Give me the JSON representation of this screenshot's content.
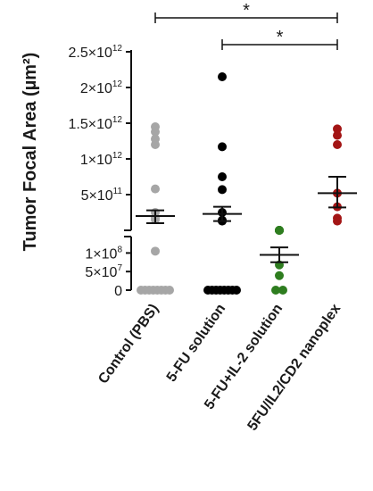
{
  "chart_data": {
    "type": "scatter",
    "title": "",
    "ylabel": "Tumor Focal Area (µm²)",
    "y_axis_break": true,
    "categories": [
      "Control (PBS)",
      "5-FU solution",
      "5-FU+IL-2 solution",
      "5FU/IL2/CD2 nanoplex"
    ],
    "upper_segment": {
      "ylim": [
        0,
        2500000000000.0
      ],
      "ticks": [
        {
          "value": 500000000000.0,
          "mant": "5",
          "exp": "11"
        },
        {
          "value": 1000000000000.0,
          "mant": "1",
          "exp": "12"
        },
        {
          "value": 1500000000000.0,
          "mant": "1.5",
          "exp": "12"
        },
        {
          "value": 2000000000000.0,
          "mant": "2",
          "exp": "12"
        },
        {
          "value": 2500000000000.0,
          "mant": "2.5",
          "exp": "12"
        }
      ]
    },
    "lower_segment": {
      "ylim": [
        0,
        125000000.0
      ],
      "ticks": [
        {
          "value": 0,
          "mant": "0",
          "exp": ""
        },
        {
          "value": 50000000.0,
          "mant": "5",
          "exp": "7"
        },
        {
          "value": 100000000.0,
          "mant": "1",
          "exp": "8"
        }
      ]
    },
    "series": [
      {
        "category": "Control (PBS)",
        "color": "#a6a6a6",
        "points": [
          1450000000000.0,
          1380000000000.0,
          1280000000000.0,
          1200000000000.0,
          580000000000.0,
          250000000000.0,
          180000000000.0,
          150000000000.0,
          105000000.0,
          0,
          0,
          0,
          0,
          0,
          0,
          0,
          0
        ],
        "mean": 200000000000.0,
        "sem": [
          100000000000.0,
          280000000000.0
        ]
      },
      {
        "category": "5-FU solution",
        "color": "#000000",
        "points": [
          2150000000000.0,
          1170000000000.0,
          750000000000.0,
          570000000000.0,
          250000000000.0,
          140000000000.0,
          130000000000.0,
          0,
          0,
          0,
          0,
          0,
          0,
          0,
          0
        ],
        "mean": 230000000000.0,
        "sem": [
          130000000000.0,
          330000000000.0
        ]
      },
      {
        "category": "5-FU+IL-2 solution",
        "color": "#2e7d1f",
        "points": [
          157000000.0,
          157000000.0,
          157000000.0,
          157000000.0,
          68000000.0,
          39000000.0,
          0,
          0
        ],
        "mean": 95000000.0,
        "sem": [
          75000000.0,
          115000000.0
        ]
      },
      {
        "category": "5FU/IL2/CD2 nanoplex",
        "color": "#a31515",
        "points": [
          1420000000000.0,
          1330000000000.0,
          1200000000000.0,
          520000000000.0,
          330000000000.0,
          170000000000.0,
          130000000000.0
        ],
        "mean": 520000000000.0,
        "sem": [
          320000000000.0,
          750000000000.0
        ]
      }
    ],
    "significance": [
      {
        "from": "Control (PBS)",
        "to": "5FU/IL2/CD2 nanoplex",
        "label": "*"
      },
      {
        "from": "5-FU solution",
        "to": "5FU/IL2/CD2 nanoplex",
        "label": "*"
      }
    ]
  }
}
